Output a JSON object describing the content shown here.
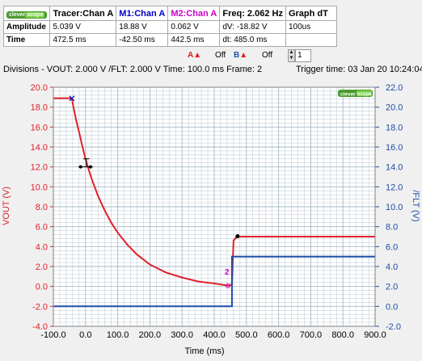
{
  "table": {
    "brand": "clever scope",
    "headers": [
      "Tracer:Chan A",
      "M1:Chan A",
      "M2:Chan A",
      "Freq: 2.062 Hz",
      "Graph dT"
    ],
    "header_colors": [
      "#000000",
      "#0000cc",
      "#cc00cc",
      "#000000",
      "#000000"
    ],
    "rows": [
      {
        "label": "Amplitude",
        "cells": [
          "5.039 V",
          "18.88 V",
          "0.062 V",
          "dV: -18.82 V",
          "100us"
        ]
      },
      {
        "label": "Time",
        "cells": [
          "472.5 ms",
          "-42.50 ms",
          "442.5 ms",
          "dt:  485.0 ms",
          ""
        ]
      }
    ]
  },
  "controls": {
    "a_label": "A",
    "a_state": "Off",
    "b_label": "B",
    "b_state": "Off",
    "spin_value": "1"
  },
  "info": {
    "divisions": "Divisions -  VOUT: 2.000 V    /FLT: 2.000 V    Time: 100.0 ms  Frame: 2",
    "trigger": "Trigger time: 03 Jan 20 10:24:04"
  },
  "colors": {
    "vout": "#e0202a",
    "flt": "#1f4fa8",
    "grid": "#a6b9c6",
    "left_axis": "#e0202a",
    "right_axis": "#1f4fa8"
  },
  "chart_data": {
    "type": "line",
    "xlabel": "Time (ms)",
    "ylabel_left": "VOUT (V)",
    "ylabel_right": "/FLT (V)",
    "xlim": [
      -100,
      900
    ],
    "ylim_left": [
      -4,
      20
    ],
    "ylim_right": [
      -2,
      22
    ],
    "x_ticks": [
      "-100.0",
      "0.0",
      "100.0",
      "200.0",
      "300.0",
      "400.0",
      "500.0",
      "600.0",
      "700.0",
      "800.0",
      "900.0"
    ],
    "y_ticks_left": [
      "-4.0",
      "-2.0",
      "0.0",
      "2.0",
      "4.0",
      "6.0",
      "8.0",
      "10.0",
      "12.0",
      "14.0",
      "16.0",
      "18.0",
      "20.0"
    ],
    "y_ticks_right": [
      "-2.0",
      "0.0",
      "2.0",
      "4.0",
      "6.0",
      "8.0",
      "10.0",
      "12.0",
      "14.0",
      "16.0",
      "18.0",
      "20.0",
      "22.0"
    ],
    "grid": true,
    "series": [
      {
        "name": "VOUT",
        "axis": "left",
        "x": [
          -100,
          -42.5,
          -40,
          -30,
          -20,
          -10,
          0,
          10,
          20,
          40,
          60,
          80,
          100,
          130,
          160,
          200,
          250,
          300,
          350,
          400,
          440,
          442.5,
          455,
          460,
          470,
          480,
          900
        ],
        "y": [
          18.9,
          18.9,
          18.4,
          16.8,
          15.5,
          14.1,
          12.8,
          11.7,
          10.7,
          9.0,
          7.6,
          6.4,
          5.4,
          4.2,
          3.2,
          2.2,
          1.4,
          0.9,
          0.5,
          0.3,
          0.1,
          0.06,
          0.2,
          4.6,
          5.0,
          5.0,
          5.0
        ]
      },
      {
        "name": "/FLT",
        "axis": "right",
        "x": [
          -100,
          455,
          455,
          900
        ],
        "y": [
          0.0,
          0.0,
          5.0,
          5.0
        ]
      }
    ],
    "markers": [
      {
        "label": "M1",
        "x": -42.5,
        "y": 18.88
      },
      {
        "label": "2",
        "x": 442.5,
        "y": 0.062
      },
      {
        "label": "Tracer",
        "x": 472.5,
        "y": 5.039
      }
    ],
    "cursor_value_y": 12.0,
    "cursor_value_x": 0.0
  }
}
